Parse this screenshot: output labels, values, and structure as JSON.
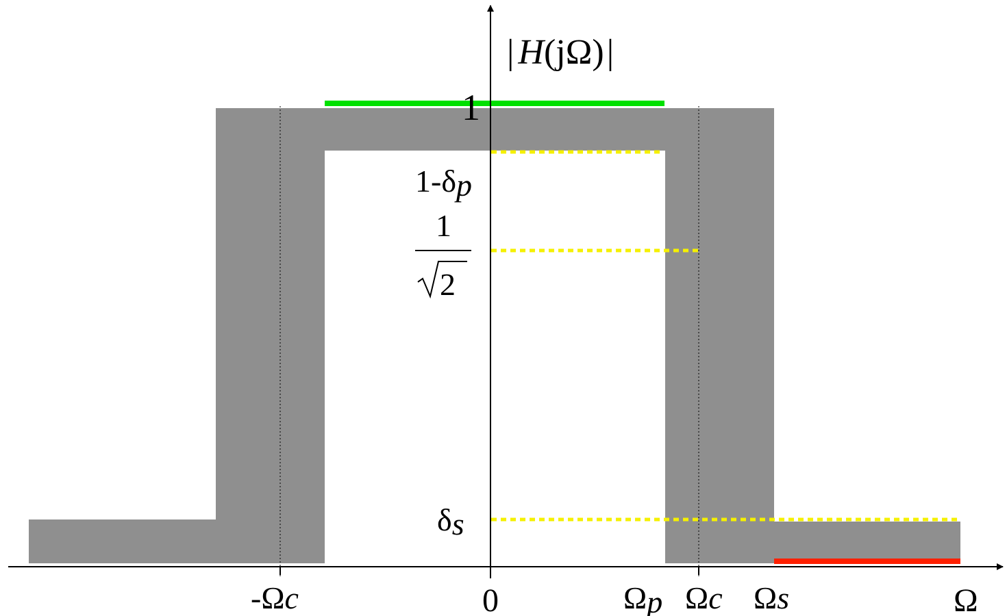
{
  "diagram": {
    "y_axis_label": {
      "pre": "|",
      "func": "H",
      "arg": "(jΩ)",
      "post": "|"
    },
    "y_labels": {
      "one": "1",
      "pass_tol": {
        "base": "1-δ",
        "sub": "p"
      },
      "half_power": {
        "num": "1",
        "den": "2"
      },
      "stop_tol": {
        "base": "δ",
        "sub": "s"
      }
    },
    "x_labels": {
      "neg_cutoff": {
        "base": "-Ω",
        "sub": "c"
      },
      "origin": "0",
      "pass_edge": {
        "base": "Ω",
        "sub": "p"
      },
      "cutoff": {
        "base": "Ω",
        "sub": "c"
      },
      "stop_edge": {
        "base": "Ω",
        "sub": "s"
      },
      "axis": "Ω"
    },
    "colors": {
      "tolerance_band": "#8f8f8f",
      "passband_line": "#00e000",
      "stopband_line": "#ff2000",
      "reference_lines": "#f5f000",
      "axes": "#000000"
    }
  }
}
